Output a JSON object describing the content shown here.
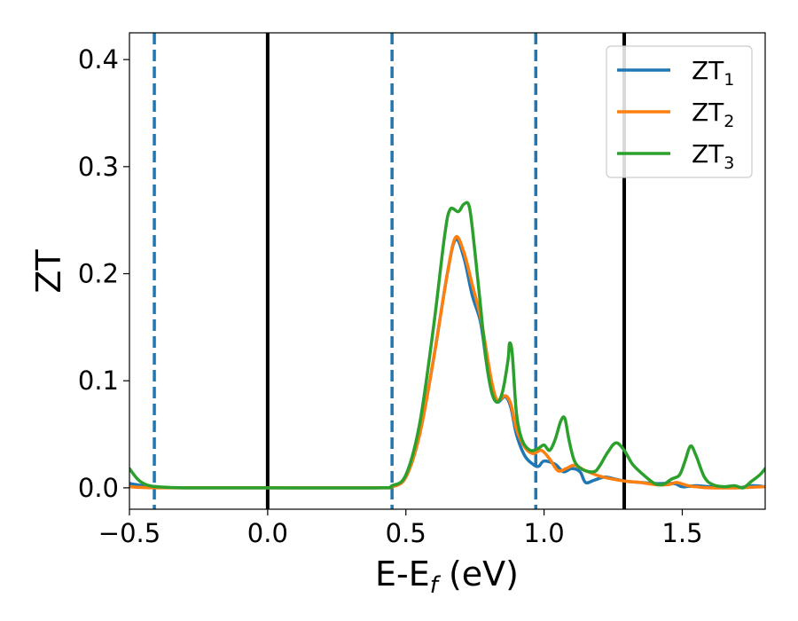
{
  "chart_data": {
    "type": "line",
    "title": "",
    "xlabel": "E-E",
    "xlabel_sub": "f",
    "xlabel_unit": " (eV)",
    "ylabel": "ZT",
    "xlim": [
      -0.5,
      1.8
    ],
    "ylim": [
      -0.02,
      0.425
    ],
    "xticks": [
      -0.5,
      0.0,
      0.5,
      1.0,
      1.5
    ],
    "xtick_labels": [
      "−0.5",
      "0.0",
      "0.5",
      "1.0",
      "1.5"
    ],
    "yticks": [
      0.0,
      0.1,
      0.2,
      0.3,
      0.4
    ],
    "ytick_labels": [
      "0.0",
      "0.1",
      "0.2",
      "0.3",
      "0.4"
    ],
    "grid": false,
    "legend_position": "top-right",
    "vlines": [
      {
        "x": -0.41,
        "style": "dashed",
        "color": "#1f77b4"
      },
      {
        "x": 0.0,
        "style": "solid",
        "color": "#000000"
      },
      {
        "x": 0.45,
        "style": "dashed",
        "color": "#1f77b4"
      },
      {
        "x": 0.97,
        "style": "dashed",
        "color": "#1f77b4"
      },
      {
        "x": 1.29,
        "style": "solid",
        "color": "#000000"
      }
    ],
    "series": [
      {
        "name": "ZT",
        "name_sub": "1",
        "color": "#1f77b4",
        "points": [
          [
            -0.5,
            0.004
          ],
          [
            -0.45,
            0.002
          ],
          [
            -0.4,
            0.0005
          ],
          [
            -0.3,
            0.0
          ],
          [
            0.0,
            0.0
          ],
          [
            0.4,
            0.0
          ],
          [
            0.45,
            0.001
          ],
          [
            0.5,
            0.01
          ],
          [
            0.55,
            0.05
          ],
          [
            0.6,
            0.12
          ],
          [
            0.65,
            0.2
          ],
          [
            0.68,
            0.232
          ],
          [
            0.71,
            0.215
          ],
          [
            0.74,
            0.18
          ],
          [
            0.77,
            0.155
          ],
          [
            0.79,
            0.12
          ],
          [
            0.81,
            0.09
          ],
          [
            0.83,
            0.08
          ],
          [
            0.86,
            0.085
          ],
          [
            0.88,
            0.075
          ],
          [
            0.9,
            0.05
          ],
          [
            0.93,
            0.03
          ],
          [
            0.96,
            0.022
          ],
          [
            0.98,
            0.02
          ],
          [
            1.0,
            0.025
          ],
          [
            1.04,
            0.022
          ],
          [
            1.07,
            0.015
          ],
          [
            1.1,
            0.018
          ],
          [
            1.13,
            0.015
          ],
          [
            1.15,
            0.005
          ],
          [
            1.18,
            0.007
          ],
          [
            1.22,
            0.01
          ],
          [
            1.26,
            0.008
          ],
          [
            1.3,
            0.006
          ],
          [
            1.35,
            0.005
          ],
          [
            1.4,
            0.004
          ],
          [
            1.47,
            0.004
          ],
          [
            1.5,
            0.001
          ],
          [
            1.55,
            0.002
          ],
          [
            1.6,
            0.001
          ],
          [
            1.7,
            0.0
          ],
          [
            1.75,
            0.002
          ],
          [
            1.8,
            0.001
          ]
        ]
      },
      {
        "name": "ZT",
        "name_sub": "2",
        "color": "#ff7f0e",
        "points": [
          [
            -0.5,
            0.001
          ],
          [
            -0.4,
            0.0
          ],
          [
            0.0,
            0.0
          ],
          [
            0.4,
            0.0
          ],
          [
            0.45,
            0.001
          ],
          [
            0.5,
            0.01
          ],
          [
            0.55,
            0.05
          ],
          [
            0.6,
            0.12
          ],
          [
            0.65,
            0.2
          ],
          [
            0.68,
            0.234
          ],
          [
            0.71,
            0.22
          ],
          [
            0.74,
            0.19
          ],
          [
            0.77,
            0.16
          ],
          [
            0.79,
            0.13
          ],
          [
            0.81,
            0.1
          ],
          [
            0.83,
            0.082
          ],
          [
            0.86,
            0.086
          ],
          [
            0.88,
            0.078
          ],
          [
            0.9,
            0.055
          ],
          [
            0.93,
            0.038
          ],
          [
            0.96,
            0.032
          ],
          [
            0.99,
            0.035
          ],
          [
            1.02,
            0.027
          ],
          [
            1.05,
            0.016
          ],
          [
            1.08,
            0.018
          ],
          [
            1.11,
            0.021
          ],
          [
            1.15,
            0.016
          ],
          [
            1.2,
            0.011
          ],
          [
            1.25,
            0.008
          ],
          [
            1.3,
            0.006
          ],
          [
            1.35,
            0.005
          ],
          [
            1.4,
            0.003
          ],
          [
            1.45,
            0.003
          ],
          [
            1.48,
            0.005
          ],
          [
            1.52,
            0.002
          ],
          [
            1.55,
            0.001
          ],
          [
            1.6,
            0.0
          ],
          [
            1.7,
            0.0
          ],
          [
            1.8,
            0.001
          ]
        ]
      },
      {
        "name": "ZT",
        "name_sub": "3",
        "color": "#2ca02c",
        "points": [
          [
            -0.5,
            0.018
          ],
          [
            -0.47,
            0.008
          ],
          [
            -0.44,
            0.003
          ],
          [
            -0.4,
            0.001
          ],
          [
            -0.3,
            0.0
          ],
          [
            0.0,
            0.0
          ],
          [
            0.4,
            0.0
          ],
          [
            0.45,
            0.002
          ],
          [
            0.5,
            0.012
          ],
          [
            0.55,
            0.06
          ],
          [
            0.6,
            0.15
          ],
          [
            0.64,
            0.235
          ],
          [
            0.66,
            0.26
          ],
          [
            0.69,
            0.258
          ],
          [
            0.71,
            0.265
          ],
          [
            0.73,
            0.262
          ],
          [
            0.75,
            0.22
          ],
          [
            0.77,
            0.17
          ],
          [
            0.79,
            0.12
          ],
          [
            0.81,
            0.09
          ],
          [
            0.83,
            0.08
          ],
          [
            0.85,
            0.09
          ],
          [
            0.87,
            0.12
          ],
          [
            0.875,
            0.135
          ],
          [
            0.885,
            0.125
          ],
          [
            0.9,
            0.07
          ],
          [
            0.92,
            0.045
          ],
          [
            0.95,
            0.035
          ],
          [
            0.98,
            0.037
          ],
          [
            1.0,
            0.04
          ],
          [
            1.02,
            0.035
          ],
          [
            1.04,
            0.045
          ],
          [
            1.06,
            0.062
          ],
          [
            1.075,
            0.065
          ],
          [
            1.09,
            0.045
          ],
          [
            1.11,
            0.025
          ],
          [
            1.14,
            0.017
          ],
          [
            1.18,
            0.015
          ],
          [
            1.2,
            0.02
          ],
          [
            1.23,
            0.033
          ],
          [
            1.26,
            0.042
          ],
          [
            1.29,
            0.035
          ],
          [
            1.32,
            0.022
          ],
          [
            1.36,
            0.012
          ],
          [
            1.4,
            0.004
          ],
          [
            1.43,
            0.003
          ],
          [
            1.46,
            0.008
          ],
          [
            1.49,
            0.012
          ],
          [
            1.51,
            0.025
          ],
          [
            1.53,
            0.039
          ],
          [
            1.55,
            0.03
          ],
          [
            1.58,
            0.01
          ],
          [
            1.61,
            0.003
          ],
          [
            1.65,
            0.001
          ],
          [
            1.69,
            0.002
          ],
          [
            1.72,
            0.0
          ],
          [
            1.75,
            0.006
          ],
          [
            1.78,
            0.012
          ],
          [
            1.8,
            0.018
          ]
        ]
      }
    ]
  }
}
